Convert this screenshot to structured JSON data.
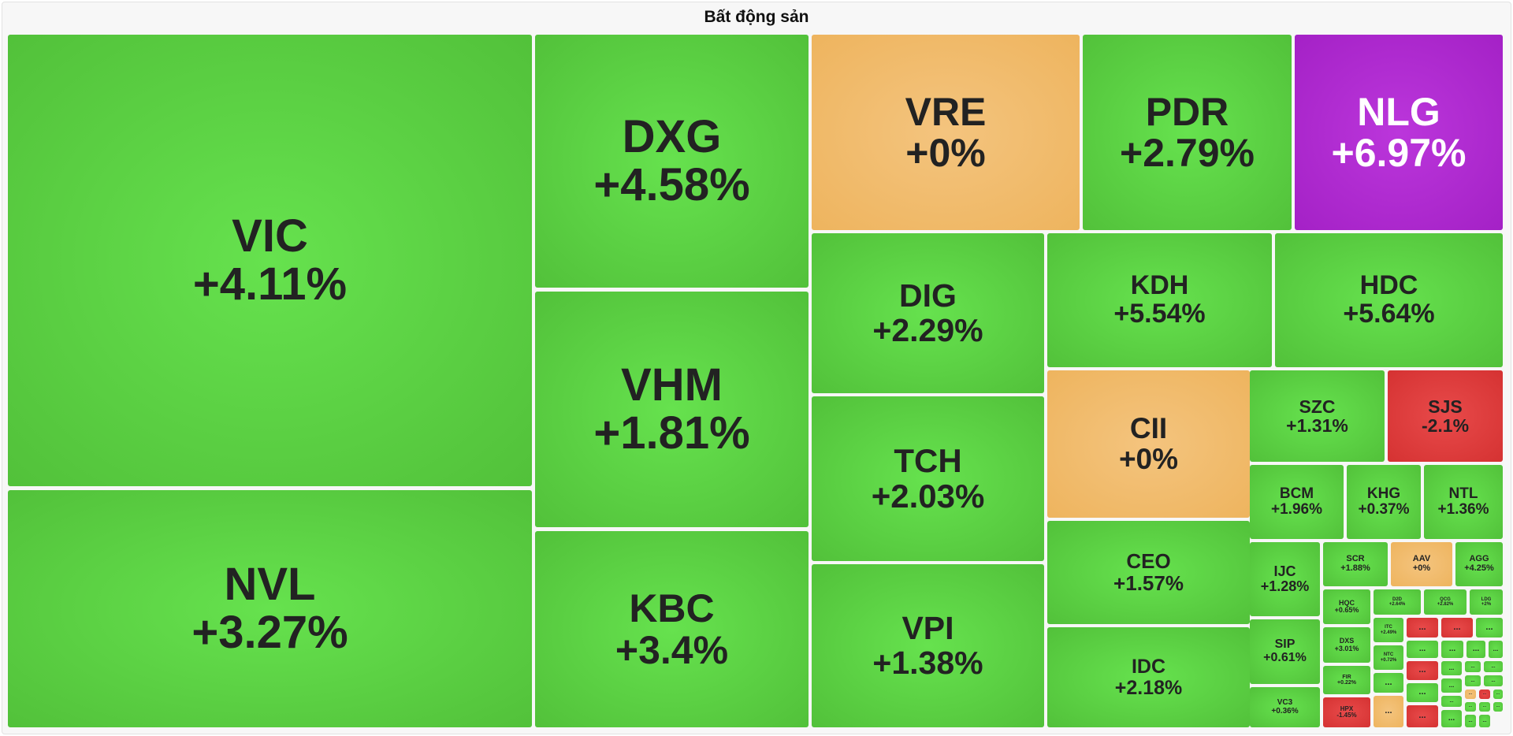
{
  "title": "Bất động sản",
  "colors": {
    "up": "#5ad443",
    "flat": "#f0bb6a",
    "down": "#dc3d3d",
    "ceiling": "#b02ad0",
    "text": "#222222",
    "ceiling_text": "#ffffff"
  },
  "chart_data": {
    "type": "treemap",
    "title": "Bất động sản",
    "tiles": [
      {
        "ticker": "VIC",
        "change": "+4.11%",
        "status": "up"
      },
      {
        "ticker": "NVL",
        "change": "+3.27%",
        "status": "up"
      },
      {
        "ticker": "DXG",
        "change": "+4.58%",
        "status": "up"
      },
      {
        "ticker": "VHM",
        "change": "+1.81%",
        "status": "up"
      },
      {
        "ticker": "KBC",
        "change": "+3.4%",
        "status": "up"
      },
      {
        "ticker": "VRE",
        "change": "+0%",
        "status": "flat"
      },
      {
        "ticker": "PDR",
        "change": "+2.79%",
        "status": "up"
      },
      {
        "ticker": "NLG",
        "change": "+6.97%",
        "status": "ceiling"
      },
      {
        "ticker": "DIG",
        "change": "+2.29%",
        "status": "up"
      },
      {
        "ticker": "TCH",
        "change": "+2.03%",
        "status": "up"
      },
      {
        "ticker": "VPI",
        "change": "+1.38%",
        "status": "up"
      },
      {
        "ticker": "KDH",
        "change": "+5.54%",
        "status": "up"
      },
      {
        "ticker": "HDC",
        "change": "+5.64%",
        "status": "up"
      },
      {
        "ticker": "CII",
        "change": "+0%",
        "status": "flat"
      },
      {
        "ticker": "CEO",
        "change": "+1.57%",
        "status": "up"
      },
      {
        "ticker": "IDC",
        "change": "+2.18%",
        "status": "up"
      },
      {
        "ticker": "SZC",
        "change": "+1.31%",
        "status": "up"
      },
      {
        "ticker": "SJS",
        "change": "-2.1%",
        "status": "down"
      },
      {
        "ticker": "BCM",
        "change": "+1.96%",
        "status": "up"
      },
      {
        "ticker": "KHG",
        "change": "+0.37%",
        "status": "up"
      },
      {
        "ticker": "NTL",
        "change": "+1.36%",
        "status": "up"
      },
      {
        "ticker": "IJC",
        "change": "+1.28%",
        "status": "up"
      },
      {
        "ticker": "SIP",
        "change": "+0.61%",
        "status": "up"
      },
      {
        "ticker": "VC3",
        "change": "+0.36%",
        "status": "up"
      },
      {
        "ticker": "SCR",
        "change": "+1.88%",
        "status": "up"
      },
      {
        "ticker": "AAV",
        "change": "+0%",
        "status": "flat"
      },
      {
        "ticker": "AGG",
        "change": "+4.25%",
        "status": "up"
      },
      {
        "ticker": "HQC",
        "change": "+0.65%",
        "status": "up"
      },
      {
        "ticker": "D2D",
        "change": "+2.64%",
        "status": "up"
      },
      {
        "ticker": "QCG",
        "change": "+2.82%",
        "status": "up"
      },
      {
        "ticker": "LDG",
        "change": "+2%",
        "status": "up"
      },
      {
        "ticker": "DXS",
        "change": "+3.01%",
        "status": "up"
      },
      {
        "ticker": "ITC",
        "change": "+2.49%",
        "status": "up"
      },
      {
        "ticker": "NTC",
        "change": "+0.72%",
        "status": "up"
      },
      {
        "ticker": "FIR",
        "change": "+0.22%",
        "status": "up"
      },
      {
        "ticker": "HPX",
        "change": "-1.45%",
        "status": "down"
      },
      {
        "ticker": "",
        "change": "...",
        "status": "down"
      },
      {
        "ticker": "",
        "change": "...",
        "status": "down"
      },
      {
        "ticker": "",
        "change": "...",
        "status": "up"
      },
      {
        "ticker": "",
        "change": "...",
        "status": "up"
      },
      {
        "ticker": "",
        "change": "...",
        "status": "up"
      },
      {
        "ticker": "",
        "change": "...",
        "status": "up"
      },
      {
        "ticker": "",
        "change": "...",
        "status": "up"
      },
      {
        "ticker": "",
        "change": "...",
        "status": "down"
      },
      {
        "ticker": "",
        "change": "...",
        "status": "up"
      },
      {
        "ticker": "",
        "change": "...",
        "status": "flat"
      },
      {
        "ticker": "",
        "change": "...",
        "status": "up"
      },
      {
        "ticker": "",
        "change": "...",
        "status": "up"
      },
      {
        "ticker": "",
        "change": "...",
        "status": "up"
      },
      {
        "ticker": "",
        "change": "...",
        "status": "up"
      },
      {
        "ticker": "",
        "change": "...",
        "status": "down"
      },
      {
        "ticker": "",
        "change": "...",
        "status": "up"
      },
      {
        "ticker": "",
        "change": "...",
        "status": "up"
      },
      {
        "ticker": "",
        "change": "...",
        "status": "up"
      },
      {
        "ticker": "",
        "change": "...",
        "status": "up"
      },
      {
        "ticker": "",
        "change": "...",
        "status": "flat"
      },
      {
        "ticker": "",
        "change": "...",
        "status": "down"
      },
      {
        "ticker": "",
        "change": "...",
        "status": "up"
      },
      {
        "ticker": "",
        "change": "...",
        "status": "up"
      },
      {
        "ticker": "",
        "change": "...",
        "status": "up"
      },
      {
        "ticker": "",
        "change": "...",
        "status": "up"
      },
      {
        "ticker": "",
        "change": "...",
        "status": "up"
      },
      {
        "ticker": "",
        "change": "...",
        "status": "up"
      },
      {
        "ticker": "",
        "change": "...",
        "status": "up"
      }
    ]
  }
}
